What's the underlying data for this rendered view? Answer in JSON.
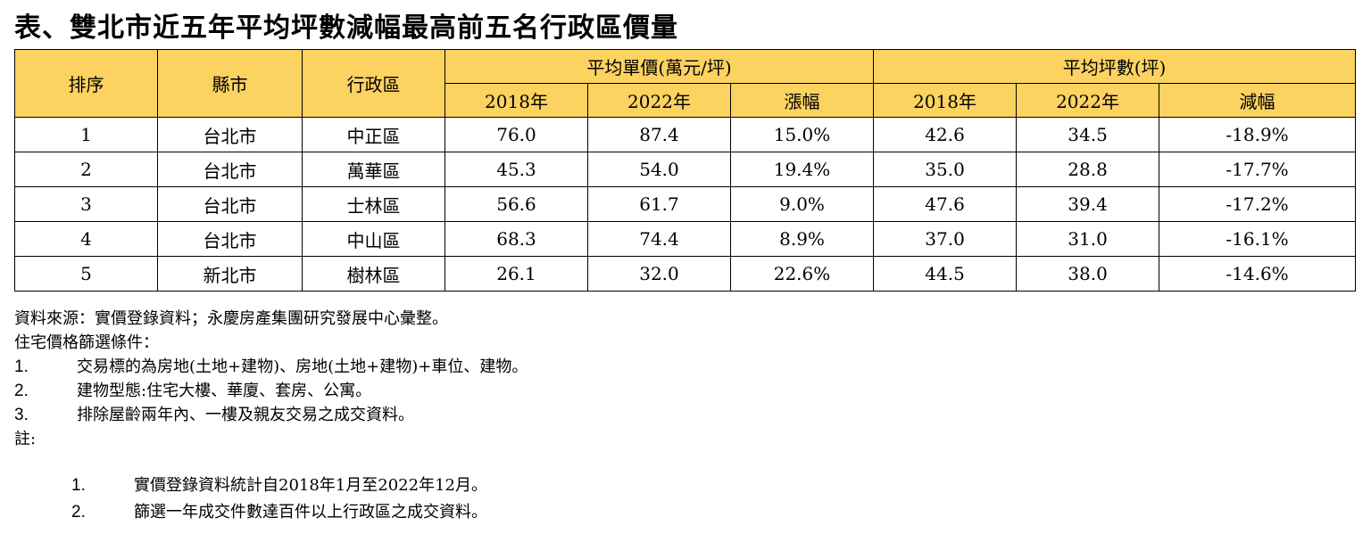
{
  "title": "表、雙北市近五年平均坪數減幅最高前五名行政區價量",
  "table": {
    "headers": {
      "rank": "排序",
      "city": "縣市",
      "district": "行政區",
      "unit_price_group": "平均單價(萬元/坪)",
      "area_group": "平均坪數(坪)",
      "price_2018": "2018年",
      "price_2022": "2022年",
      "price_change": "漲幅",
      "area_2018": "2018年",
      "area_2022": "2022年",
      "area_change": "減幅"
    },
    "rows": [
      {
        "rank": "1",
        "city": "台北市",
        "district": "中正區",
        "price_2018": "76.0",
        "price_2022": "87.4",
        "price_change": "15.0%",
        "area_2018": "42.6",
        "area_2022": "34.5",
        "area_change": "-18.9%"
      },
      {
        "rank": "2",
        "city": "台北市",
        "district": "萬華區",
        "price_2018": "45.3",
        "price_2022": "54.0",
        "price_change": "19.4%",
        "area_2018": "35.0",
        "area_2022": "28.8",
        "area_change": "-17.7%"
      },
      {
        "rank": "3",
        "city": "台北市",
        "district": "士林區",
        "price_2018": "56.6",
        "price_2022": "61.7",
        "price_change": "9.0%",
        "area_2018": "47.6",
        "area_2022": "39.4",
        "area_change": "-17.2%"
      },
      {
        "rank": "4",
        "city": "台北市",
        "district": "中山區",
        "price_2018": "68.3",
        "price_2022": "74.4",
        "price_change": "8.9%",
        "area_2018": "37.0",
        "area_2022": "31.0",
        "area_change": "-16.1%"
      },
      {
        "rank": "5",
        "city": "新北市",
        "district": "樹林區",
        "price_2018": "26.1",
        "price_2022": "32.0",
        "price_change": "22.6%",
        "area_2018": "44.5",
        "area_2022": "38.0",
        "area_change": "-14.6%"
      }
    ]
  },
  "notes": {
    "source": "資料來源：實價登錄資料；永慶房產集團研究發展中心彙整。",
    "criteria_title": "住宅價格篩選條件：",
    "criteria": [
      {
        "num": "1.",
        "text": "交易標的為房地(土地+建物)、房地(土地+建物)+車位、建物。"
      },
      {
        "num": "2.",
        "text": "建物型態:住宅大樓、華廈、套房、公寓。"
      },
      {
        "num": "3.",
        "text": "排除屋齡兩年內、一樓及親友交易之成交資料。"
      }
    ],
    "remarks_title": "註:",
    "remarks": [
      {
        "num": "1.",
        "text": "實價登錄資料統計自2018年1月至2022年12月。"
      },
      {
        "num": "2.",
        "text": "篩選一年成交件數達百件以上行政區之成交資料。"
      }
    ]
  }
}
